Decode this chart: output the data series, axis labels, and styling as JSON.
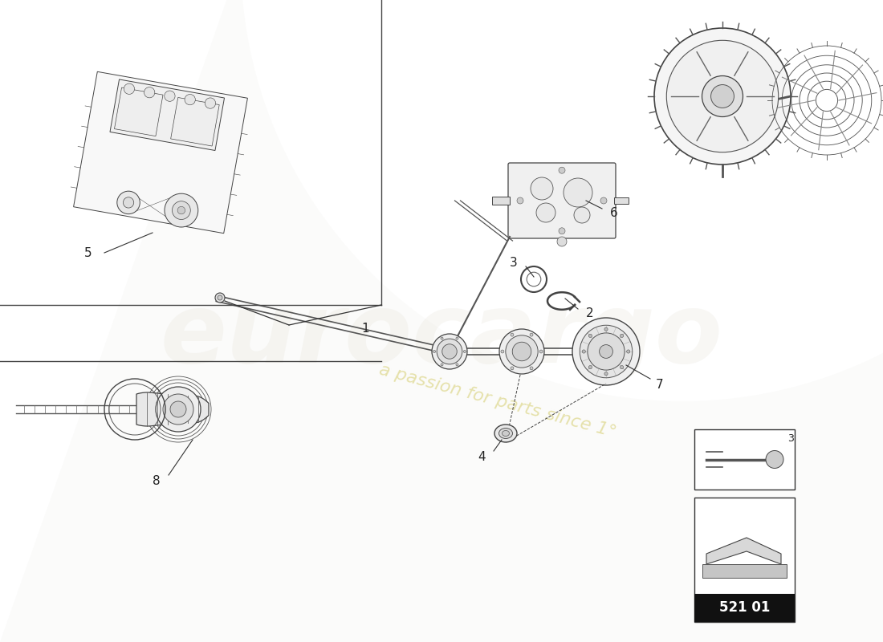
{
  "bg_color": "#ffffff",
  "line_color": "#333333",
  "part_number_text": "521 01",
  "part_number_text_color": "#ffffff",
  "watermark_color": "#d4cc6a",
  "label_fontsize": 11,
  "label_color": "#222222",
  "divider_color": "#555555",
  "component_line_color": "#555555",
  "component_fill": "#f5f5f5",
  "component_dark": "#888888",
  "icon_edge_color": "#333333"
}
